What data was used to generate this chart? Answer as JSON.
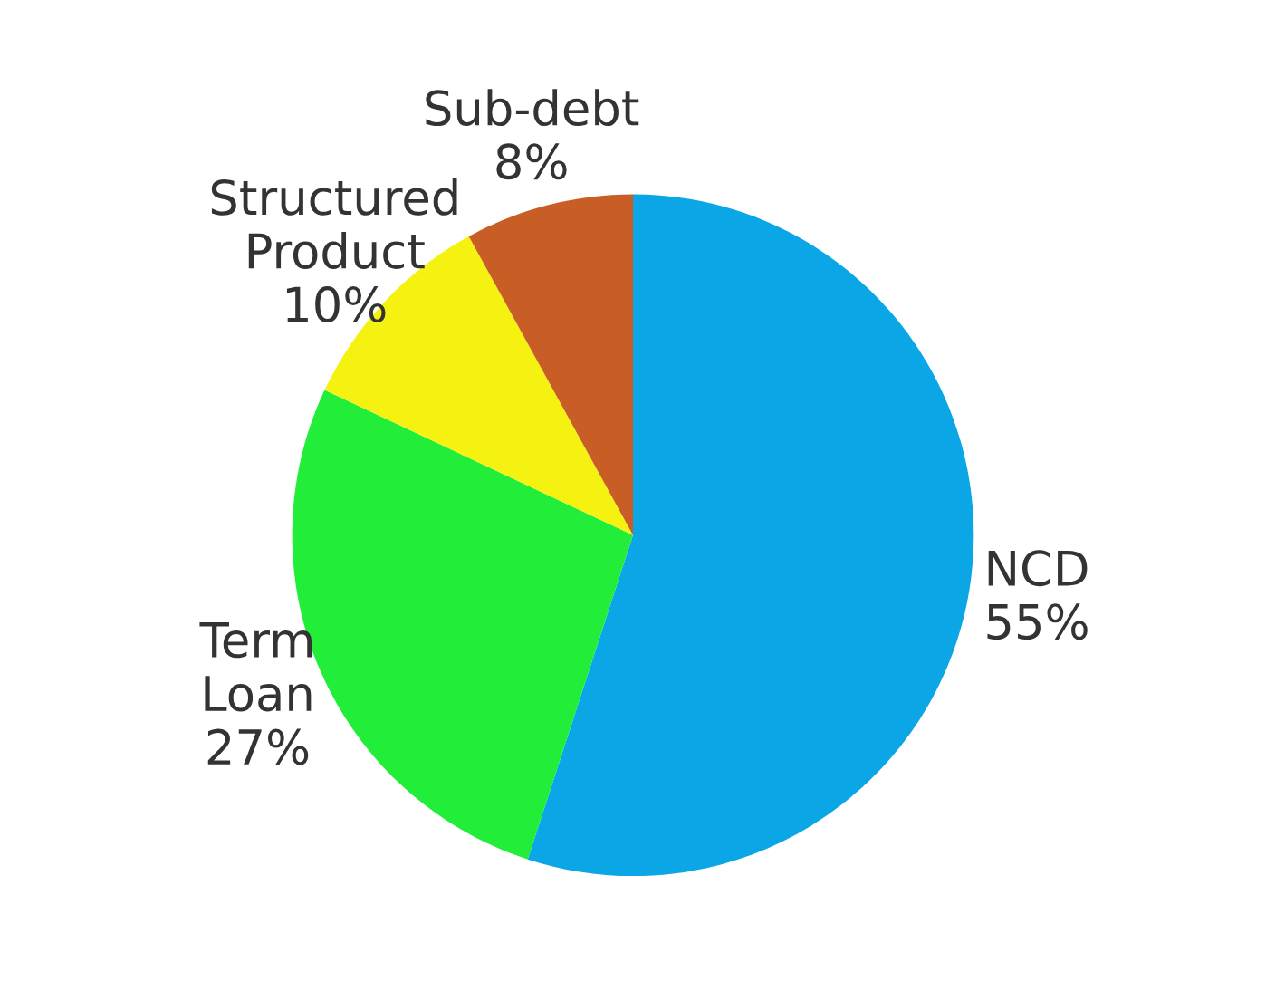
{
  "chart_data": {
    "type": "pie",
    "categories": [
      "NCD",
      "Term\nLoan",
      "Structured\nProduct",
      "Sub-debt"
    ],
    "values": [
      55,
      27,
      10,
      8
    ],
    "value_labels": [
      "55%",
      "27%",
      "10%",
      "8%"
    ],
    "colors": [
      "#0aa6e6",
      "#22ee3a",
      "#f5f211",
      "#c85e25"
    ]
  }
}
